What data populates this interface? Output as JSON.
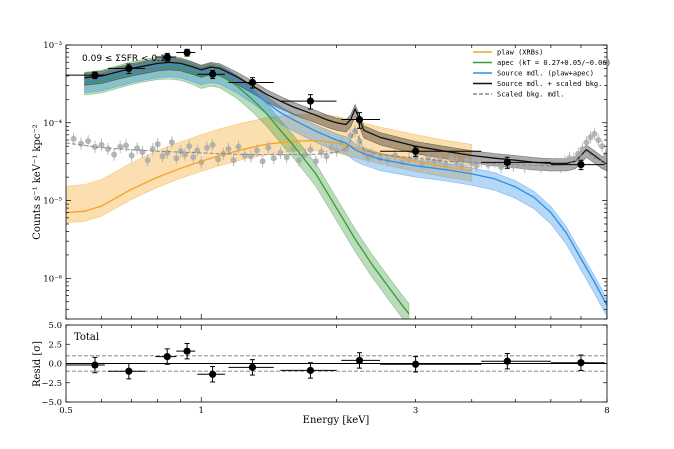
{
  "chart_data": [
    {
      "type": "line",
      "panel": "spectrum",
      "ylabel": "Counts s⁻¹ keV⁻¹ kpc⁻²",
      "xscale": "log",
      "yscale": "log",
      "xlim": [
        0.5,
        8
      ],
      "ylim": [
        3e-07,
        0.001
      ],
      "x_ticks": [
        0.5,
        1,
        3,
        8
      ],
      "y_ticks": [
        {
          "value": 1e-06,
          "label": "10⁻⁶"
        },
        {
          "value": 1e-05,
          "label": "10⁻⁵"
        },
        {
          "value": 0.0001,
          "label": "10⁻⁴"
        },
        {
          "value": 0.001,
          "label": "10⁻³"
        }
      ],
      "annotation": "0.09 ≤ ΣSFR < 0.15",
      "legend_position": "top-right",
      "legend": [
        {
          "label": "plaw (XRBs)",
          "color": "#f5a21f",
          "style": "solid"
        },
        {
          "label": "apec (kT = 0.27+0.05/−0.06)",
          "color": "#3a9a3a",
          "style": "solid"
        },
        {
          "label": "Source mdl. (plaw+apec)",
          "color": "#2c8ee8",
          "style": "solid"
        },
        {
          "label": "Source mdl. + scaled bkg.",
          "color": "#111111",
          "style": "solid"
        },
        {
          "label": "Scaled bkg. mdl.",
          "color": "#888888",
          "style": "dashed"
        }
      ],
      "series": [
        {
          "name": "plaw (XRBs)",
          "color": "#f5a21f",
          "x": [
            0.5,
            0.55,
            0.6,
            0.65,
            0.7,
            0.8,
            0.9,
            1.0,
            1.1,
            1.25,
            1.4,
            1.6,
            1.8,
            2.0,
            2.2,
            2.5,
            3.0,
            3.5,
            4.0
          ],
          "y": [
            7e-06,
            7.3e-06,
            8.5e-06,
            1.1e-05,
            1.4e-05,
            2e-05,
            2.6e-05,
            3.2e-05,
            3.8e-05,
            4.6e-05,
            5.3e-05,
            5.8e-05,
            5.9e-05,
            5.5e-05,
            4.8e-05,
            4e-05,
            3.2e-05,
            2.7e-05,
            2.4e-05
          ],
          "band": [
            2.2,
            1.35
          ]
        },
        {
          "name": "apec",
          "color": "#3a9a3a",
          "x": [
            0.55,
            0.6,
            0.65,
            0.7,
            0.75,
            0.8,
            0.85,
            0.9,
            0.95,
            1.0,
            1.05,
            1.1,
            1.2,
            1.3,
            1.4,
            1.5,
            1.6,
            1.8,
            2.0,
            2.2,
            2.4,
            2.6,
            2.8,
            2.9
          ],
          "y": [
            0.00033,
            0.00035,
            0.0004,
            0.00045,
            0.00049,
            0.00052,
            0.00053,
            0.00051,
            0.00046,
            0.0004,
            0.00043,
            0.00041,
            0.0003,
            0.0002,
            0.00013,
            8e-05,
            5.2e-05,
            2.2e-05,
            8e-06,
            3.2e-06,
            1.5e-06,
            8e-07,
            4.5e-07,
            3.5e-07
          ],
          "band": [
            1.35,
            1.45
          ]
        },
        {
          "name": "Source mdl. (plaw+apec)",
          "color": "#2c8ee8",
          "x": [
            0.55,
            0.6,
            0.65,
            0.7,
            0.75,
            0.8,
            0.85,
            0.9,
            0.95,
            1.0,
            1.05,
            1.1,
            1.2,
            1.3,
            1.4,
            1.5,
            1.6,
            1.8,
            2.0,
            2.1,
            2.2,
            2.3,
            2.5,
            3.0,
            3.5,
            4.0,
            4.5,
            5.0,
            5.5,
            6.0,
            6.5,
            7.0,
            7.5,
            8.0
          ],
          "y": [
            0.00034,
            0.00036,
            0.00041,
            0.00046,
            0.0005,
            0.00053,
            0.00055,
            0.00053,
            0.00048,
            0.00043,
            0.00046,
            0.00044,
            0.00034,
            0.00025,
            0.00018,
            0.000135,
            0.00011,
            7.8e-05,
            6e-05,
            5.5e-05,
            4.5e-05,
            4e-05,
            3.4e-05,
            2.8e-05,
            2.5e-05,
            2.2e-05,
            1.9e-05,
            1.5e-05,
            1.1e-05,
            7e-06,
            3.8e-06,
            1.8e-06,
            9e-07,
            4.5e-07
          ],
          "band": [
            1.2,
            1.4
          ]
        },
        {
          "name": "Source mdl. + scaled bkg.",
          "color": "#111111",
          "x": [
            0.55,
            0.6,
            0.65,
            0.7,
            0.75,
            0.8,
            0.85,
            0.9,
            0.95,
            1.0,
            1.05,
            1.1,
            1.2,
            1.3,
            1.4,
            1.5,
            1.6,
            1.8,
            1.9,
            2.0,
            2.1,
            2.15,
            2.2,
            2.25,
            2.3,
            2.5,
            3.0,
            3.5,
            4.0,
            4.5,
            5.0,
            5.5,
            6.0,
            6.5,
            6.8,
            7.0,
            7.2,
            7.5,
            7.8,
            8.0
          ],
          "y": [
            0.00038,
            0.0004,
            0.00045,
            0.0005,
            0.00054,
            0.00058,
            0.0006,
            0.00058,
            0.00053,
            0.00048,
            0.00052,
            0.0005,
            0.00039,
            0.0003,
            0.00023,
            0.00019,
            0.00016,
            0.000125,
            0.00011,
            0.0001,
            9.5e-05,
            0.00011,
            0.00015,
            0.00011,
            8e-05,
            6.5e-05,
            5e-05,
            4.3e-05,
            3.8e-05,
            3.5e-05,
            3.3e-05,
            3.1e-05,
            3e-05,
            3e-05,
            3.2e-05,
            3.8e-05,
            4.5e-05,
            3.8e-05,
            3.2e-05,
            3e-05
          ],
          "band": [
            1.15,
            1.25
          ]
        },
        {
          "name": "Scaled bkg. mdl.",
          "color": "#888888",
          "dashed": true,
          "x": [
            0.5,
            0.6,
            0.7,
            0.8,
            0.9,
            1.0,
            1.1,
            1.3,
            1.5,
            1.7,
            1.9,
            2.0,
            2.1,
            2.15,
            2.2,
            2.25,
            2.3,
            2.5,
            3.0,
            3.5,
            4.0,
            5.0,
            6.0,
            6.5,
            6.8,
            7.0,
            7.2,
            7.5,
            8.0
          ],
          "y": [
            5.5e-05,
            4.8e-05,
            4.5e-05,
            4.3e-05,
            4.2e-05,
            4.1e-05,
            4e-05,
            3.9e-05,
            3.9e-05,
            3.9e-05,
            4e-05,
            4.2e-05,
            4.6e-05,
            6e-05,
            8.5e-05,
            6e-05,
            4.5e-05,
            3.9e-05,
            3.5e-05,
            3.2e-05,
            3.1e-05,
            2.9e-05,
            2.8e-05,
            2.9e-05,
            3.2e-05,
            3.8e-05,
            4.3e-05,
            3.5e-05,
            3e-05
          ]
        }
      ],
      "data_points": {
        "name": "Source data",
        "color": "#000000",
        "points": [
          {
            "x": 0.58,
            "xerr": [
              0.08,
              0.03
            ],
            "y": 0.00041,
            "yerr": [
              4e-05,
              4e-05
            ]
          },
          {
            "x": 0.69,
            "xerr": [
              0.07,
              0.06
            ],
            "y": 0.0005,
            "yerr": [
              7e-05,
              7e-05
            ]
          },
          {
            "x": 0.84,
            "xerr": [
              0.05,
              0.04
            ],
            "y": 0.0007,
            "yerr": [
              8e-05,
              8e-05
            ]
          },
          {
            "x": 0.93,
            "xerr": [
              0.05,
              0.04
            ],
            "y": 0.0008,
            "yerr": [
              8e-05,
              8e-05
            ]
          },
          {
            "x": 1.06,
            "xerr": [
              0.08,
              0.07
            ],
            "y": 0.00042,
            "yerr": [
              5e-05,
              5e-05
            ]
          },
          {
            "x": 1.3,
            "xerr": [
              0.15,
              0.15
            ],
            "y": 0.00033,
            "yerr": [
              5e-05,
              5e-05
            ]
          },
          {
            "x": 1.75,
            "xerr": [
              0.25,
              0.25
            ],
            "y": 0.00019,
            "yerr": [
              4e-05,
              4e-05
            ]
          },
          {
            "x": 2.25,
            "xerr": [
              0.2,
              0.25
            ],
            "y": 0.00011,
            "yerr": [
              2.5e-05,
              2.5e-05
            ]
          },
          {
            "x": 3.0,
            "xerr": [
              0.5,
              1.2
            ],
            "y": 4.3e-05,
            "yerr": [
              6e-06,
              6e-06
            ]
          },
          {
            "x": 4.8,
            "xerr": [
              0.6,
              1.2
            ],
            "y": 3.1e-05,
            "yerr": [
              5e-06,
              5e-06
            ]
          },
          {
            "x": 7.0,
            "xerr": [
              1.0,
              0.9
            ],
            "y": 2.9e-05,
            "yerr": [
              4e-06,
              4e-06
            ]
          }
        ]
      },
      "background_points": {
        "name": "Background data",
        "color": "#aaaaaa",
        "x": [
          0.52,
          0.54,
          0.56,
          0.58,
          0.6,
          0.62,
          0.64,
          0.66,
          0.68,
          0.7,
          0.72,
          0.74,
          0.76,
          0.78,
          0.8,
          0.82,
          0.84,
          0.86,
          0.88,
          0.9,
          0.92,
          0.94,
          0.96,
          0.98,
          1.0,
          1.03,
          1.06,
          1.09,
          1.12,
          1.15,
          1.18,
          1.21,
          1.25,
          1.29,
          1.33,
          1.37,
          1.41,
          1.45,
          1.5,
          1.55,
          1.6,
          1.65,
          1.7,
          1.75,
          1.8,
          1.85,
          1.9,
          1.95,
          2.0,
          2.05,
          2.1,
          2.15,
          2.2,
          2.25,
          2.3,
          2.35,
          2.4,
          2.5,
          2.6,
          2.7,
          2.8,
          2.9,
          3.0,
          3.1,
          3.2,
          3.3,
          3.4,
          3.5,
          3.6,
          3.7,
          3.8,
          3.9,
          4.0,
          4.1,
          4.2,
          4.35,
          4.5,
          4.65,
          4.8,
          4.95,
          5.1,
          5.25,
          5.4,
          5.55,
          5.7,
          5.85,
          6.0,
          6.15,
          6.3,
          6.45,
          6.6,
          6.75,
          6.9,
          7.05,
          7.2,
          7.35,
          7.5,
          7.65,
          7.8,
          7.95
        ],
        "y": [
          6.2e-05,
          5.4e-05,
          5.8e-05,
          4.9e-05,
          5.2e-05,
          4.6e-05,
          3.9e-05,
          4.9e-05,
          5.1e-05,
          3.8e-05,
          4.7e-05,
          4.2e-05,
          3.3e-05,
          4.6e-05,
          5.3e-05,
          3.7e-05,
          4.1e-05,
          5.6e-05,
          3.5e-05,
          4.3e-05,
          3.9e-05,
          5e-05,
          3.6e-05,
          4.4e-05,
          3.1e-05,
          4.8e-05,
          5.2e-05,
          3.4e-05,
          4e-05,
          4.6e-05,
          3.3e-05,
          4.9e-05,
          3.8e-05,
          3.7e-05,
          4.4e-05,
          3.2e-05,
          4.8e-05,
          3.5e-05,
          4.1e-05,
          3.6e-05,
          4.6e-05,
          3.3e-05,
          3.9e-05,
          4.5e-05,
          3.2e-05,
          4.2e-05,
          3.7e-05,
          4.8e-05,
          4.4e-05,
          5.5e-05,
          4.6e-05,
          6.8e-05,
          7.8e-05,
          5.8e-05,
          4.2e-05,
          3.6e-05,
          3.9e-05,
          3.5e-05,
          3.3e-05,
          3.8e-05,
          3.1e-05,
          3.4e-05,
          3.6e-05,
          3e-05,
          3.5e-05,
          3.2e-05,
          3.3e-05,
          2.9e-05,
          3.4e-05,
          3.1e-05,
          2.8e-05,
          3.3e-05,
          3e-05,
          2.8e-05,
          3.2e-05,
          2.9e-05,
          3.1e-05,
          2.7e-05,
          3e-05,
          2.8e-05,
          3.1e-05,
          2.7e-05,
          2.9e-05,
          3e-05,
          2.7e-05,
          2.9e-05,
          2.8e-05,
          3e-05,
          2.7e-05,
          3.2e-05,
          3.5e-05,
          3.4e-05,
          4e-05,
          4.6e-05,
          5.6e-05,
          6.5e-05,
          7.2e-05,
          6e-05,
          5e-05,
          3.9e-05
        ]
      }
    },
    {
      "type": "scatter",
      "panel": "residuals",
      "title": "Total",
      "xlabel": "Energy [keV]",
      "ylabel": "Resid [σ]",
      "xscale": "log",
      "xlim": [
        0.5,
        8
      ],
      "ylim": [
        -5,
        5
      ],
      "x_ticks": [
        {
          "value": 0.5,
          "label": "0.5"
        },
        {
          "value": 1,
          "label": "1"
        },
        {
          "value": 3,
          "label": "3"
        },
        {
          "value": 8,
          "label": "8"
        }
      ],
      "y_ticks": [
        {
          "value": -5,
          "label": "−5.0"
        },
        {
          "value": -2.5,
          "label": "−2.5"
        },
        {
          "value": 0,
          "label": "0.0"
        },
        {
          "value": 2.5,
          "label": "2.5"
        },
        {
          "value": 5,
          "label": "5.0"
        }
      ],
      "hlines": [
        {
          "y": 0,
          "style": "solid"
        },
        {
          "y": 1,
          "style": "dashed"
        },
        {
          "y": -1,
          "style": "dashed"
        }
      ],
      "points": [
        {
          "x": 0.58,
          "xerr": [
            0.08,
            0.03
          ],
          "y": -0.2,
          "yerr": 1
        },
        {
          "x": 0.69,
          "xerr": [
            0.07,
            0.06
          ],
          "y": -1.0,
          "yerr": 1
        },
        {
          "x": 0.84,
          "xerr": [
            0.05,
            0.04
          ],
          "y": 0.9,
          "yerr": 1
        },
        {
          "x": 0.93,
          "xerr": [
            0.05,
            0.04
          ],
          "y": 1.6,
          "yerr": 1
        },
        {
          "x": 1.06,
          "xerr": [
            0.08,
            0.07
          ],
          "y": -1.4,
          "yerr": 1
        },
        {
          "x": 1.3,
          "xerr": [
            0.15,
            0.15
          ],
          "y": -0.5,
          "yerr": 1
        },
        {
          "x": 1.75,
          "xerr": [
            0.25,
            0.25
          ],
          "y": -0.9,
          "yerr": 1
        },
        {
          "x": 2.25,
          "xerr": [
            0.2,
            0.25
          ],
          "y": 0.4,
          "yerr": 1
        },
        {
          "x": 3.0,
          "xerr": [
            0.5,
            1.2
          ],
          "y": -0.1,
          "yerr": 1
        },
        {
          "x": 4.8,
          "xerr": [
            0.6,
            1.2
          ],
          "y": 0.3,
          "yerr": 1
        },
        {
          "x": 7.0,
          "xerr": [
            1.0,
            0.9
          ],
          "y": 0.1,
          "yerr": 1
        }
      ]
    }
  ]
}
